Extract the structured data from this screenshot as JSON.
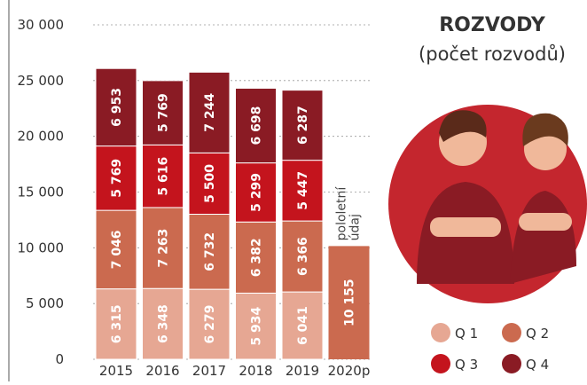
{
  "chart_data": {
    "type": "stacked-bar",
    "title": "ROZVODY",
    "subtitle": "(počet rozvodů)",
    "categories": [
      "2015",
      "2016",
      "2017",
      "2018",
      "2019",
      "2020p"
    ],
    "ylim": [
      0,
      30000
    ],
    "yticks": [
      0,
      {
        "value": 5000,
        "label": "5 000"
      },
      {
        "value": 10000,
        "label": "10 000"
      },
      {
        "value": 15000,
        "label": "15 000"
      },
      {
        "value": 20000,
        "label": "20 000"
      },
      {
        "value": 25000,
        "label": "25 000"
      },
      {
        "value": 30000,
        "label": "30 000"
      }
    ],
    "grid": true,
    "series": [
      {
        "name": "Q 1",
        "color": "#e6a793",
        "values": [
          6315,
          6348,
          6279,
          5934,
          6041,
          null
        ],
        "value_labels": [
          "6 315",
          "6 348",
          "6 279",
          "5 934",
          "6 041",
          null
        ]
      },
      {
        "name": "Q 2",
        "color": "#cb6a4f",
        "values": [
          7046,
          7263,
          6732,
          6382,
          6366,
          null
        ],
        "value_labels": [
          "7 046",
          "7 263",
          "6 732",
          "6 382",
          "6 366",
          null
        ]
      },
      {
        "name": "Q 3",
        "color": "#c4141d",
        "values": [
          5769,
          5616,
          5500,
          5299,
          5447,
          null
        ],
        "value_labels": [
          "5 769",
          "5 616",
          "5 500",
          "5 299",
          "5 447",
          null
        ]
      },
      {
        "name": "Q 4",
        "color": "#8a1b24",
        "values": [
          6953,
          5769,
          7244,
          6698,
          6287,
          null
        ],
        "value_labels": [
          "6 953",
          "5 769",
          "7 244",
          "6 698",
          "6 287",
          null
        ]
      }
    ],
    "partial": {
      "value": 10155,
      "value_label": "10 155",
      "color": "#cb6a4f",
      "note": "pololetní údaj"
    }
  }
}
